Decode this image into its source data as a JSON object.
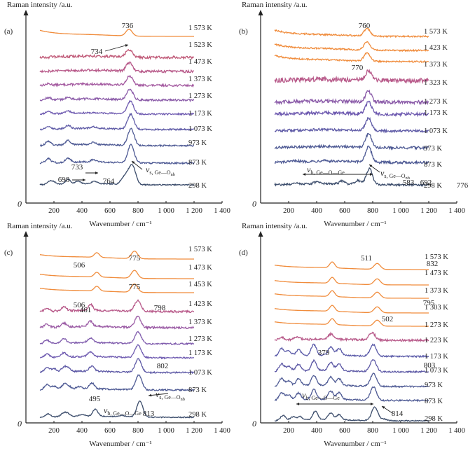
{
  "chart_data": [
    {
      "type": "line",
      "panel": "(a)",
      "ylabel": "Raman intensity /a.u.",
      "xlabel": "Wavenumber / cm⁻¹",
      "xlim": [
        0,
        1400
      ],
      "xticks": [
        "0",
        "200",
        "400",
        "600",
        "800",
        "1 000",
        "1 200",
        "1 400"
      ],
      "y_origin_label": "0",
      "series": [
        {
          "name": "298 K",
          "color": "#3b4c6b",
          "peaks": [
            [
              170,
              0.35
            ],
            [
              200,
              0.25
            ],
            [
              300,
              0.55
            ],
            [
              370,
              0.3
            ],
            [
              490,
              0.3
            ],
            [
              698,
              0.7
            ],
            [
              733,
              1.0
            ],
            [
              764,
              1.9
            ]
          ],
          "noise": 0.02
        },
        {
          "name": "873 K",
          "color": "#4e5a94",
          "peaks": [
            [
              160,
              0.5
            ],
            [
              300,
              0.5
            ],
            [
              480,
              0.25
            ],
            [
              750,
              2.2
            ]
          ],
          "noise": 0.03
        },
        {
          "name": "973 K",
          "color": "#4e5a94",
          "peaks": [
            [
              160,
              0.5
            ],
            [
              300,
              0.5
            ],
            [
              480,
              0.25
            ],
            [
              750,
              2.0
            ]
          ],
          "noise": 0.03
        },
        {
          "name": "1 073 K",
          "color": "#5e5aa6",
          "peaks": [
            [
              160,
              0.35
            ],
            [
              300,
              0.4
            ],
            [
              480,
              0.2
            ],
            [
              748,
              1.8
            ]
          ],
          "noise": 0.03
        },
        {
          "name": "1 173 K",
          "color": "#6e5ab0",
          "peaks": [
            [
              160,
              0.3
            ],
            [
              300,
              0.3
            ],
            [
              745,
              1.5
            ]
          ],
          "noise": 0.03
        },
        {
          "name": "1 273 K",
          "color": "#8a5aa8",
          "peaks": [
            [
              160,
              0.25
            ],
            [
              300,
              0.2
            ],
            [
              742,
              1.3
            ]
          ],
          "noise": 0.04
        },
        {
          "name": "1 373 K",
          "color": "#a45aa0",
          "peaks": [
            [
              160,
              0.15
            ],
            [
              740,
              1.1
            ]
          ],
          "noise": 0.04
        },
        {
          "name": "1 473 K",
          "color": "#b85a8a",
          "peaks": [
            [
              738,
              1.0
            ]
          ],
          "noise": 0.05
        },
        {
          "name": "1 523 K",
          "color": "#c05a78",
          "peaks": [
            [
              736,
              0.9
            ]
          ],
          "noise": 0.05
        },
        {
          "name": "1 573 K",
          "color": "#f08c3c",
          "peaks": [
            [
              736,
              0.8
            ]
          ],
          "noise": 0.0
        }
      ],
      "annotations": [
        {
          "text": "736"
        },
        {
          "text": "734"
        },
        {
          "text": "733"
        },
        {
          "text": "698"
        },
        {
          "text": "764"
        },
        {
          "mode": "ν",
          "sub": "s, Ge—O",
          "subsub": "nb"
        }
      ]
    },
    {
      "type": "line",
      "panel": "(b)",
      "ylabel": "Raman intensity /a.u.",
      "xlabel": "Wavenumber / cm⁻¹",
      "xlim": [
        0,
        1400
      ],
      "xticks": [
        "0",
        "200",
        "400",
        "600",
        "800",
        "1 000",
        "1 200",
        "1 400"
      ],
      "y_origin_label": "0",
      "series": [
        {
          "name": "298 K",
          "color": "#3b4c6b",
          "peaks": [
            [
              250,
              0.2
            ],
            [
              400,
              0.2
            ],
            [
              583,
              0.35
            ],
            [
              692,
              0.45
            ],
            [
              776,
              1.9
            ]
          ],
          "noise": 0.04
        },
        {
          "name": "873 K",
          "color": "#4e5a94",
          "peaks": [
            [
              250,
              0.15
            ],
            [
              450,
              0.15
            ],
            [
              770,
              1.8
            ]
          ],
          "noise": 0.05
        },
        {
          "name": "973 K",
          "color": "#4e5a94",
          "peaks": [
            [
              770,
              1.6
            ]
          ],
          "noise": 0.05
        },
        {
          "name": "1 073 K",
          "color": "#5e5aa6",
          "peaks": [
            [
              770,
              1.5
            ]
          ],
          "noise": 0.05
        },
        {
          "name": "1 173 K",
          "color": "#6e5ab0",
          "peaks": [
            [
              770,
              1.4
            ]
          ],
          "noise": 0.06
        },
        {
          "name": "1 273 K",
          "color": "#8a5aa8",
          "peaks": [
            [
              770,
              1.3
            ]
          ],
          "noise": 0.07
        },
        {
          "name": "1 323 K",
          "color": "#b85a8a",
          "peaks": [
            [
              770,
              1.2
            ]
          ],
          "noise": 0.09
        },
        {
          "name": "1 373 K",
          "color": "#f08c3c",
          "peaks": [
            [
              760,
              1.0
            ]
          ],
          "noise": 0.03
        },
        {
          "name": "1 423 K",
          "color": "#f08c3c",
          "peaks": [
            [
              760,
              1.0
            ]
          ],
          "noise": 0.03
        },
        {
          "name": "1 573 K",
          "color": "#f08c3c",
          "peaks": [
            [
              760,
              0.9
            ]
          ],
          "noise": 0.03
        }
      ],
      "annotations": [
        {
          "text": "760"
        },
        {
          "text": "770"
        },
        {
          "text": "583"
        },
        {
          "text": "692"
        },
        {
          "text": "776"
        },
        {
          "mode": "ν",
          "sub": "b, Ge—O—Ge"
        },
        {
          "mode": "ν",
          "sub": "s, Ge—O",
          "subsub": "nb"
        }
      ]
    },
    {
      "type": "line",
      "panel": "(c)",
      "ylabel": "Raman intensity /a.u.",
      "xlabel": "Wavenumber / cm⁻¹",
      "xlim": [
        0,
        1400
      ],
      "xticks": [
        "0",
        "200",
        "400",
        "600",
        "800",
        "1 000",
        "1 200",
        "1 400"
      ],
      "y_origin_label": "0",
      "series": [
        {
          "name": "298 K",
          "color": "#3b4c6b",
          "peaks": [
            [
              160,
              0.35
            ],
            [
              270,
              0.4
            ],
            [
              300,
              0.3
            ],
            [
              400,
              0.2
            ],
            [
              495,
              0.8
            ],
            [
              690,
              0.15
            ],
            [
              813,
              1.9
            ]
          ],
          "noise": 0.02
        },
        {
          "name": "873 K",
          "color": "#4e5a94",
          "peaks": [
            [
              150,
              0.6
            ],
            [
              200,
              0.4
            ],
            [
              270,
              0.5
            ],
            [
              300,
              0.4
            ],
            [
              380,
              0.3
            ],
            [
              470,
              0.7
            ],
            [
              805,
              1.8
            ]
          ],
          "noise": 0.03
        },
        {
          "name": "1 073 K",
          "color": "#5e5aa6",
          "peaks": [
            [
              150,
              0.5
            ],
            [
              200,
              0.4
            ],
            [
              270,
              0.5
            ],
            [
              300,
              0.4
            ],
            [
              470,
              0.6
            ],
            [
              802,
              1.6
            ]
          ],
          "noise": 0.03
        },
        {
          "name": "1 173 K",
          "color": "#6e5ab0",
          "peaks": [
            [
              150,
              0.4
            ],
            [
              270,
              0.5
            ],
            [
              460,
              0.55
            ],
            [
              800,
              1.5
            ]
          ],
          "noise": 0.03
        },
        {
          "name": "1 273 K",
          "color": "#7e5aac",
          "peaks": [
            [
              150,
              0.4
            ],
            [
              270,
              0.5
            ],
            [
              460,
              0.55
            ],
            [
              800,
              1.4
            ]
          ],
          "noise": 0.03
        },
        {
          "name": "1 373 K",
          "color": "#9a5aa4",
          "peaks": [
            [
              150,
              0.35
            ],
            [
              270,
              0.45
            ],
            [
              460,
              0.6
            ],
            [
              798,
              1.3
            ]
          ],
          "noise": 0.04
        },
        {
          "name": "1 423 K",
          "color": "#b85a8a",
          "peaks": [
            [
              150,
              0.3
            ],
            [
              270,
              0.45
            ],
            [
              461,
              0.7
            ],
            [
              798,
              1.3
            ]
          ],
          "noise": 0.04
        },
        {
          "name": "1 453 K",
          "color": "#f08c3c",
          "peaks": [
            [
              506,
              0.55
            ],
            [
              775,
              1.0
            ]
          ],
          "noise": 0.0
        },
        {
          "name": "1 473 K",
          "color": "#f08c3c",
          "peaks": [
            [
              506,
              0.55
            ],
            [
              775,
              0.95
            ]
          ],
          "noise": 0.0
        },
        {
          "name": "1 573 K",
          "color": "#f08c3c",
          "peaks": [
            [
              506,
              0.55
            ],
            [
              775,
              0.9
            ]
          ],
          "noise": 0.0
        }
      ],
      "annotations": [
        {
          "text": "506"
        },
        {
          "text": "775"
        },
        {
          "text": "506"
        },
        {
          "text": "775"
        },
        {
          "text": "461"
        },
        {
          "text": "798"
        },
        {
          "text": "802"
        },
        {
          "text": "495"
        },
        {
          "text": "813"
        },
        {
          "mode": "ν",
          "sub": "b, Ge—O—Ge"
        },
        {
          "mode": "ν",
          "sub": "s, Ge—O",
          "subsub": "nb"
        }
      ]
    },
    {
      "type": "line",
      "panel": "(d)",
      "ylabel": "Raman intensity /a.u.",
      "xlabel": "Wavenumber / cm⁻¹",
      "xlim": [
        0,
        1400
      ],
      "xticks": [
        "0",
        "200",
        "400",
        "600",
        "800",
        "1 000",
        "1 200",
        "1 400"
      ],
      "y_origin_label": "0",
      "series": [
        {
          "name": "298 K",
          "color": "#3b4c6b",
          "peaks": [
            [
              160,
              0.6
            ],
            [
              230,
              0.4
            ],
            [
              280,
              0.4
            ],
            [
              390,
              1.0
            ],
            [
              500,
              0.8
            ],
            [
              560,
              0.6
            ],
            [
              814,
              1.6
            ],
            [
              880,
              0.2
            ]
          ],
          "noise": 0.02
        },
        {
          "name": "873 K",
          "color": "#4e5a94",
          "peaks": [
            [
              150,
              0.9
            ],
            [
              200,
              0.6
            ],
            [
              270,
              0.8
            ],
            [
              380,
              1.2
            ],
            [
              500,
              1.0
            ],
            [
              560,
              0.8
            ],
            [
              805,
              1.6
            ]
          ],
          "noise": 0.03
        },
        {
          "name": "973 K",
          "color": "#4e5a94",
          "peaks": [
            [
              150,
              0.9
            ],
            [
              200,
              0.6
            ],
            [
              270,
              0.8
            ],
            [
              380,
              1.2
            ],
            [
              500,
              1.0
            ],
            [
              560,
              0.8
            ],
            [
              805,
              1.5
            ]
          ],
          "noise": 0.03
        },
        {
          "name": "1 073 K",
          "color": "#5e5aa6",
          "peaks": [
            [
              150,
              0.9
            ],
            [
              200,
              0.6
            ],
            [
              270,
              0.8
            ],
            [
              380,
              1.2
            ],
            [
              500,
              1.0
            ],
            [
              560,
              0.8
            ],
            [
              803,
              1.4
            ]
          ],
          "noise": 0.03
        },
        {
          "name": "1 173 K",
          "color": "#5a5aa8",
          "peaks": [
            [
              150,
              0.9
            ],
            [
              200,
              0.6
            ],
            [
              270,
              0.7
            ],
            [
              379,
              1.3
            ],
            [
              500,
              1.0
            ],
            [
              560,
              0.8
            ],
            [
              803,
              1.4
            ]
          ],
          "noise": 0.03
        },
        {
          "name": "1 223 K",
          "color": "#b85a8a",
          "peaks": [
            [
              150,
              0.3
            ],
            [
              260,
              0.3
            ],
            [
              502,
              0.6
            ],
            [
              795,
              0.9
            ]
          ],
          "noise": 0.04
        },
        {
          "name": "1 273 K",
          "color": "#f08c3c",
          "peaks": [
            [
              511,
              0.7
            ],
            [
              832,
              0.7
            ]
          ],
          "noise": 0.0
        },
        {
          "name": "1 303 K",
          "color": "#f08c3c",
          "peaks": [
            [
              511,
              0.7
            ],
            [
              832,
              0.7
            ]
          ],
          "noise": 0.0
        },
        {
          "name": "1 373 K",
          "color": "#f08c3c",
          "peaks": [
            [
              511,
              0.7
            ],
            [
              832,
              0.7
            ]
          ],
          "noise": 0.0
        },
        {
          "name": "1 473 K",
          "color": "#f08c3c",
          "peaks": [
            [
              511,
              0.7
            ],
            [
              832,
              0.7
            ]
          ],
          "noise": 0.0
        },
        {
          "name": "1 573 K",
          "color": "#f08c3c",
          "peaks": [
            [
              511,
              0.7
            ],
            [
              832,
              0.7
            ]
          ],
          "noise": 0.0
        }
      ],
      "annotations": [
        {
          "text": "511"
        },
        {
          "text": "832"
        },
        {
          "text": "795"
        },
        {
          "text": "502"
        },
        {
          "text": "379"
        },
        {
          "text": "803"
        },
        {
          "text": "814"
        },
        {
          "mode": "ν",
          "sub": "b, Ge—O—Ge"
        }
      ]
    }
  ]
}
